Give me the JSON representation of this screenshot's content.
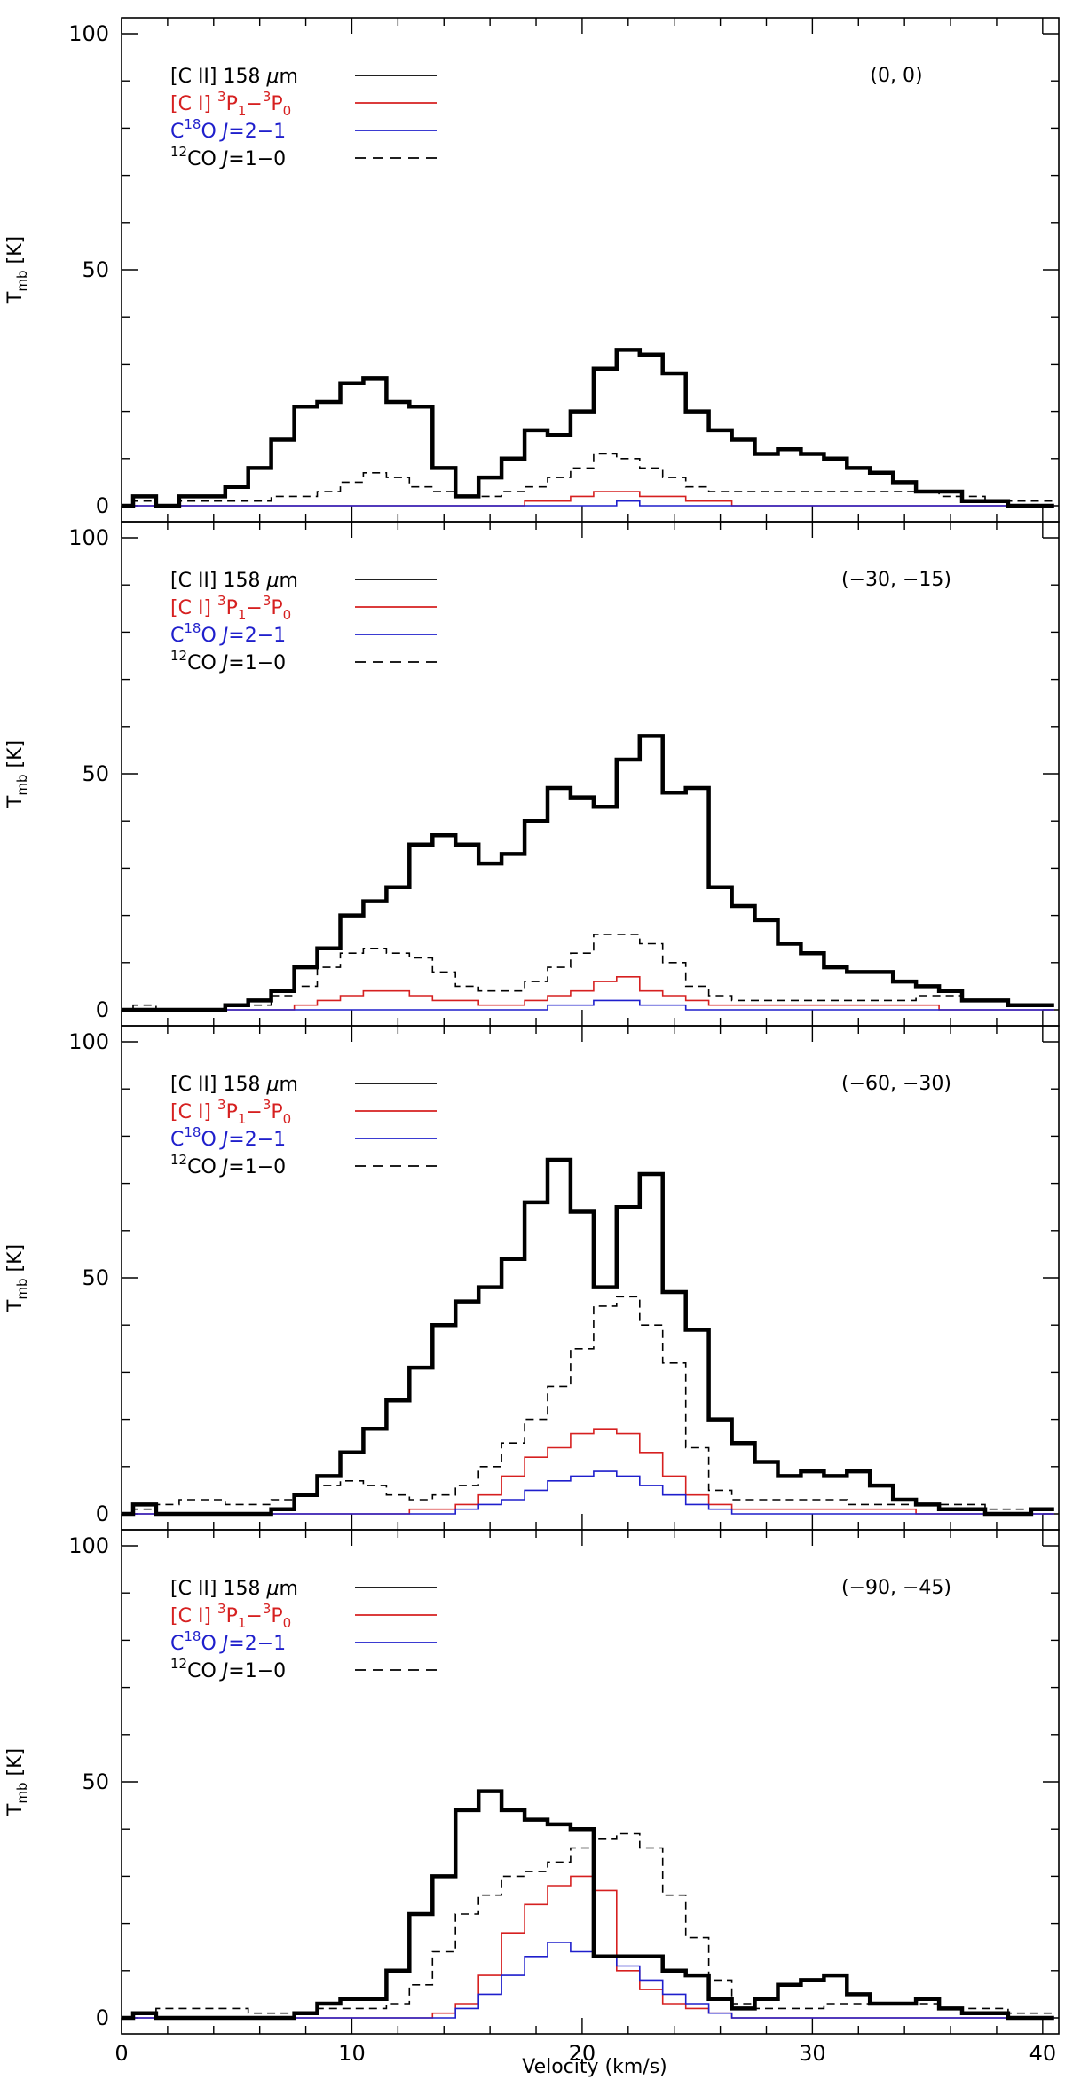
{
  "chart_data": {
    "type": "line",
    "xlabel": "Velocity (km/s)",
    "ylabel_main": "T",
    "ylabel_sub": "mb",
    "ylabel_unit": " [K]",
    "xlim": [
      0,
      40.7
    ],
    "ylim": [
      0,
      100
    ],
    "x_ticks": [
      0,
      10,
      20,
      30,
      40
    ],
    "y_ticks": [
      0,
      50,
      100
    ],
    "x": [
      0,
      1,
      2,
      3,
      4,
      5,
      6,
      7,
      8,
      9,
      10,
      11,
      12,
      13,
      14,
      15,
      16,
      17,
      18,
      19,
      20,
      21,
      22,
      23,
      24,
      25,
      26,
      27,
      28,
      29,
      30,
      31,
      32,
      33,
      34,
      35,
      36,
      37,
      38,
      39,
      40
    ],
    "legend": [
      {
        "pre": "[C II] 158 ",
        "ital": "μ",
        "post": "m",
        "sup1": "",
        "mid": "",
        "sub1": "",
        "mid2": "",
        "sup2": "",
        "mid3": "",
        "sub2": "",
        "color": "#000000",
        "dash": false
      },
      {
        "pre": "[C I] ",
        "ital": "",
        "post": "",
        "sup1": "3",
        "mid": "P",
        "sub1": "1",
        "mid2": "−",
        "sup2": "3",
        "mid3": "P",
        "sub2": "0",
        "color": "#d62020",
        "dash": false
      },
      {
        "pre": "C",
        "ital": "",
        "post": "",
        "sup1": "18",
        "mid": "O ",
        "sub1": "",
        "mid2": "J=2−1",
        "sup2": "",
        "mid3": "",
        "sub2": "",
        "color": "#1f1fcc",
        "dash": false
      },
      {
        "pre": "",
        "ital": "",
        "post": "",
        "sup1": "12",
        "mid": "CO ",
        "sub1": "",
        "mid2": "J=1−0",
        "sup2": "",
        "mid3": "",
        "sub2": "",
        "color": "#000000",
        "dash": true
      }
    ],
    "panels": [
      {
        "position": "(0, 0)",
        "series": [
          {
            "name": "[C II] 158 μm",
            "color": "#000000",
            "width": 4.5,
            "dash": false,
            "values": [
              0,
              2,
              0,
              2,
              2,
              4,
              8,
              14,
              21,
              22,
              26,
              27,
              22,
              21,
              8,
              2,
              6,
              10,
              16,
              15,
              20,
              29,
              33,
              32,
              28,
              20,
              16,
              14,
              11,
              12,
              11,
              10,
              8,
              7,
              5,
              3,
              3,
              1,
              1,
              0,
              0
            ]
          },
          {
            "name": "[C I] 3P1-3P0",
            "color": "#d62020",
            "width": 1.6,
            "dash": false,
            "values": [
              0,
              0,
              0,
              0,
              0,
              0,
              0,
              0,
              0,
              0,
              0,
              0,
              0,
              0,
              0,
              0,
              0,
              0,
              1,
              1,
              2,
              3,
              3,
              2,
              2,
              1,
              1,
              0,
              0,
              0,
              0,
              0,
              0,
              0,
              0,
              0,
              0,
              0,
              0,
              0,
              0
            ]
          },
          {
            "name": "C18O J=2-1",
            "color": "#1f1fcc",
            "width": 1.6,
            "dash": false,
            "values": [
              0,
              0,
              0,
              0,
              0,
              0,
              0,
              0,
              0,
              0,
              0,
              0,
              0,
              0,
              0,
              0,
              0,
              0,
              0,
              0,
              0,
              0,
              1,
              0,
              0,
              0,
              0,
              0,
              0,
              0,
              0,
              0,
              0,
              0,
              0,
              0,
              0,
              0,
              0,
              0,
              0
            ]
          },
          {
            "name": "12CO J=1-0",
            "color": "#000000",
            "width": 1.6,
            "dash": true,
            "values": [
              0,
              1,
              0,
              1,
              1,
              1,
              1,
              2,
              2,
              3,
              5,
              7,
              6,
              4,
              3,
              2,
              2,
              3,
              4,
              6,
              8,
              11,
              10,
              8,
              6,
              4,
              3,
              3,
              3,
              3,
              3,
              3,
              3,
              3,
              3,
              3,
              2,
              2,
              1,
              1,
              1
            ]
          }
        ]
      },
      {
        "position": "(−30, −15)",
        "series": [
          {
            "name": "[C II] 158 μm",
            "color": "#000000",
            "width": 4.5,
            "dash": false,
            "values": [
              0,
              0,
              0,
              0,
              0,
              1,
              2,
              4,
              9,
              13,
              20,
              23,
              26,
              35,
              37,
              35,
              31,
              33,
              40,
              47,
              45,
              43,
              53,
              58,
              46,
              47,
              26,
              22,
              19,
              14,
              12,
              9,
              8,
              8,
              6,
              5,
              4,
              2,
              2,
              1,
              1
            ]
          },
          {
            "name": "[C I] 3P1-3P0",
            "color": "#d62020",
            "width": 1.6,
            "dash": false,
            "values": [
              0,
              0,
              0,
              0,
              0,
              0,
              0,
              0,
              1,
              2,
              3,
              4,
              4,
              3,
              2,
              2,
              1,
              1,
              2,
              3,
              4,
              6,
              7,
              4,
              3,
              2,
              1,
              1,
              1,
              1,
              1,
              1,
              1,
              1,
              1,
              1,
              0,
              0,
              0,
              0,
              0
            ]
          },
          {
            "name": "C18O J=2-1",
            "color": "#1f1fcc",
            "width": 1.6,
            "dash": false,
            "values": [
              0,
              0,
              0,
              0,
              0,
              0,
              0,
              0,
              0,
              0,
              0,
              0,
              0,
              0,
              0,
              0,
              0,
              0,
              0,
              1,
              1,
              2,
              2,
              1,
              1,
              0,
              0,
              0,
              0,
              0,
              0,
              0,
              0,
              0,
              0,
              0,
              0,
              0,
              0,
              0,
              0
            ]
          },
          {
            "name": "12CO J=1-0",
            "color": "#000000",
            "width": 1.6,
            "dash": true,
            "values": [
              0,
              1,
              0,
              0,
              0,
              1,
              1,
              3,
              5,
              9,
              12,
              13,
              12,
              11,
              8,
              5,
              4,
              4,
              6,
              9,
              12,
              16,
              16,
              14,
              10,
              5,
              3,
              2,
              2,
              2,
              2,
              2,
              2,
              2,
              2,
              3,
              3,
              2,
              2,
              1,
              1
            ]
          }
        ]
      },
      {
        "position": "(−60, −30)",
        "series": [
          {
            "name": "[C II] 158 μm",
            "color": "#000000",
            "width": 4.5,
            "dash": false,
            "values": [
              0,
              2,
              0,
              0,
              0,
              0,
              0,
              1,
              4,
              8,
              13,
              18,
              24,
              31,
              40,
              45,
              48,
              54,
              66,
              75,
              64,
              48,
              65,
              72,
              47,
              39,
              20,
              15,
              11,
              8,
              9,
              8,
              9,
              6,
              3,
              2,
              1,
              1,
              0,
              0,
              1
            ]
          },
          {
            "name": "[C I] 3P1-3P0",
            "color": "#d62020",
            "width": 1.6,
            "dash": false,
            "values": [
              0,
              0,
              0,
              0,
              0,
              0,
              0,
              0,
              0,
              0,
              0,
              0,
              0,
              1,
              1,
              2,
              4,
              8,
              12,
              14,
              17,
              18,
              17,
              13,
              8,
              4,
              2,
              1,
              1,
              1,
              1,
              1,
              1,
              1,
              1,
              0,
              0,
              0,
              0,
              0,
              0
            ]
          },
          {
            "name": "C18O J=2-1",
            "color": "#1f1fcc",
            "width": 1.6,
            "dash": false,
            "values": [
              0,
              0,
              0,
              0,
              0,
              0,
              0,
              0,
              0,
              0,
              0,
              0,
              0,
              0,
              0,
              1,
              2,
              3,
              5,
              7,
              8,
              9,
              8,
              6,
              4,
              2,
              1,
              0,
              0,
              0,
              0,
              0,
              0,
              0,
              0,
              0,
              0,
              0,
              0,
              0,
              0
            ]
          },
          {
            "name": "12CO J=1-0",
            "color": "#000000",
            "width": 1.6,
            "dash": true,
            "values": [
              0,
              1,
              2,
              3,
              3,
              2,
              2,
              3,
              4,
              6,
              7,
              6,
              4,
              3,
              4,
              6,
              10,
              15,
              20,
              27,
              35,
              44,
              46,
              40,
              32,
              14,
              5,
              3,
              3,
              3,
              3,
              3,
              2,
              2,
              2,
              2,
              2,
              2,
              1,
              1,
              1
            ]
          }
        ]
      },
      {
        "position": "(−90, −45)",
        "series": [
          {
            "name": "[C II] 158 μm",
            "color": "#000000",
            "width": 4.5,
            "dash": false,
            "values": [
              0,
              1,
              0,
              0,
              0,
              0,
              0,
              0,
              1,
              3,
              4,
              4,
              10,
              22,
              30,
              44,
              48,
              44,
              42,
              41,
              40,
              13,
              13,
              13,
              10,
              9,
              4,
              2,
              4,
              7,
              8,
              9,
              5,
              3,
              3,
              4,
              2,
              1,
              1,
              0,
              0
            ]
          },
          {
            "name": "[C I] 3P1-3P0",
            "color": "#d62020",
            "width": 1.6,
            "dash": false,
            "values": [
              0,
              0,
              0,
              0,
              0,
              0,
              0,
              0,
              0,
              0,
              0,
              0,
              0,
              0,
              1,
              3,
              9,
              18,
              24,
              28,
              30,
              27,
              10,
              6,
              3,
              2,
              1,
              0,
              0,
              0,
              0,
              0,
              0,
              0,
              0,
              0,
              0,
              0,
              0,
              0,
              0
            ]
          },
          {
            "name": "C18O J=2-1",
            "color": "#1f1fcc",
            "width": 1.6,
            "dash": false,
            "values": [
              0,
              0,
              0,
              0,
              0,
              0,
              0,
              0,
              0,
              0,
              0,
              0,
              0,
              0,
              0,
              2,
              5,
              9,
              13,
              16,
              14,
              13,
              11,
              8,
              5,
              3,
              1,
              0,
              0,
              0,
              0,
              0,
              0,
              0,
              0,
              0,
              0,
              0,
              0,
              0,
              0
            ]
          },
          {
            "name": "12CO J=1-0",
            "color": "#000000",
            "width": 1.6,
            "dash": true,
            "values": [
              0,
              1,
              2,
              2,
              2,
              2,
              1,
              1,
              1,
              2,
              2,
              2,
              3,
              7,
              14,
              22,
              26,
              30,
              31,
              33,
              36,
              38,
              39,
              36,
              26,
              17,
              8,
              3,
              2,
              2,
              2,
              3,
              3,
              3,
              3,
              3,
              2,
              2,
              2,
              1,
              1
            ]
          }
        ]
      }
    ]
  }
}
